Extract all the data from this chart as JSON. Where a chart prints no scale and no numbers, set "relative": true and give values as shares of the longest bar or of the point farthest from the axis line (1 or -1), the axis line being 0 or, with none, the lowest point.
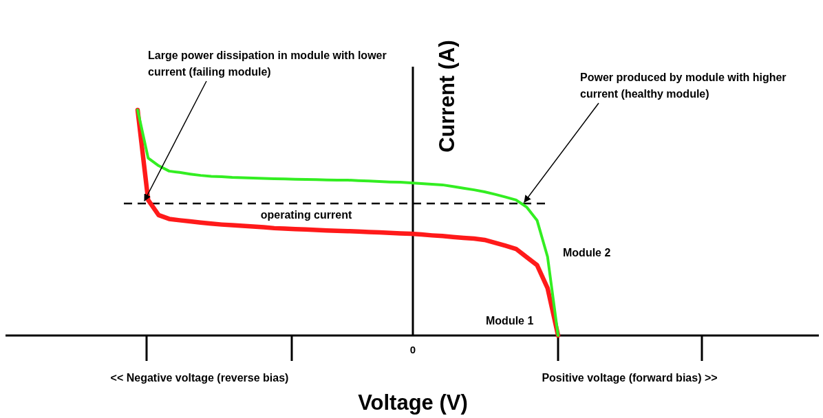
{
  "chart_data": {
    "type": "line",
    "relative": true,
    "xlabel": "Voltage (V)",
    "ylabel": "Current (A)",
    "categories": [
      null,
      null,
      null,
      null,
      null,
      null,
      null,
      null,
      null,
      null,
      null,
      null,
      null,
      null,
      null,
      null,
      null,
      null,
      null,
      null,
      null,
      null,
      null,
      null,
      null,
      null,
      null,
      null,
      null,
      null,
      null,
      null,
      null,
      null,
      null,
      null,
      null,
      null,
      null,
      null,
      null
    ],
    "series": [
      {
        "name": "Module 1",
        "color": "#ff1a1a",
        "values": [
          1.0,
          0.601,
          0.534,
          0.517,
          0.511,
          0.506,
          0.501,
          0.496,
          0.492,
          0.489,
          0.486,
          0.483,
          0.48,
          0.476,
          0.474,
          0.472,
          0.47,
          0.468,
          0.466,
          0.464,
          0.463,
          0.461,
          0.459,
          0.457,
          0.455,
          0.453,
          0.451,
          0.448,
          0.444,
          0.441,
          0.437,
          0.433,
          0.43,
          0.424,
          0.411,
          0.398,
          0.384,
          0.348,
          0.312,
          0.21,
          0
        ]
      },
      {
        "name": "Module 2",
        "color": "#33ee22",
        "values": [
          1.0,
          0.787,
          0.753,
          0.729,
          0.723,
          0.716,
          0.71,
          0.706,
          0.704,
          0.701,
          0.7,
          0.698,
          0.697,
          0.695,
          0.694,
          0.693,
          0.692,
          0.691,
          0.69,
          0.689,
          0.689,
          0.687,
          0.685,
          0.683,
          0.681,
          0.68,
          0.677,
          0.674,
          0.671,
          0.668,
          0.661,
          0.653,
          0.646,
          0.637,
          0.626,
          0.614,
          0.601,
          0.57,
          0.511,
          0.349,
          0
        ]
      }
    ],
    "ref_lines": [
      {
        "axis": "y",
        "value": 0.585,
        "label": "operating current",
        "color": "#000000",
        "line_style": "dashed"
      }
    ],
    "annotations": [
      "Large power dissipation in module with lower current (failing module)",
      "Power produced by module with higher current (healthy module)",
      "0",
      "<< Negative voltage (reverse bias)",
      "Positive voltage (forward bias) >>"
    ],
    "grid": false,
    "legend": false,
    "marker": "none",
    "line_style": "solid"
  }
}
